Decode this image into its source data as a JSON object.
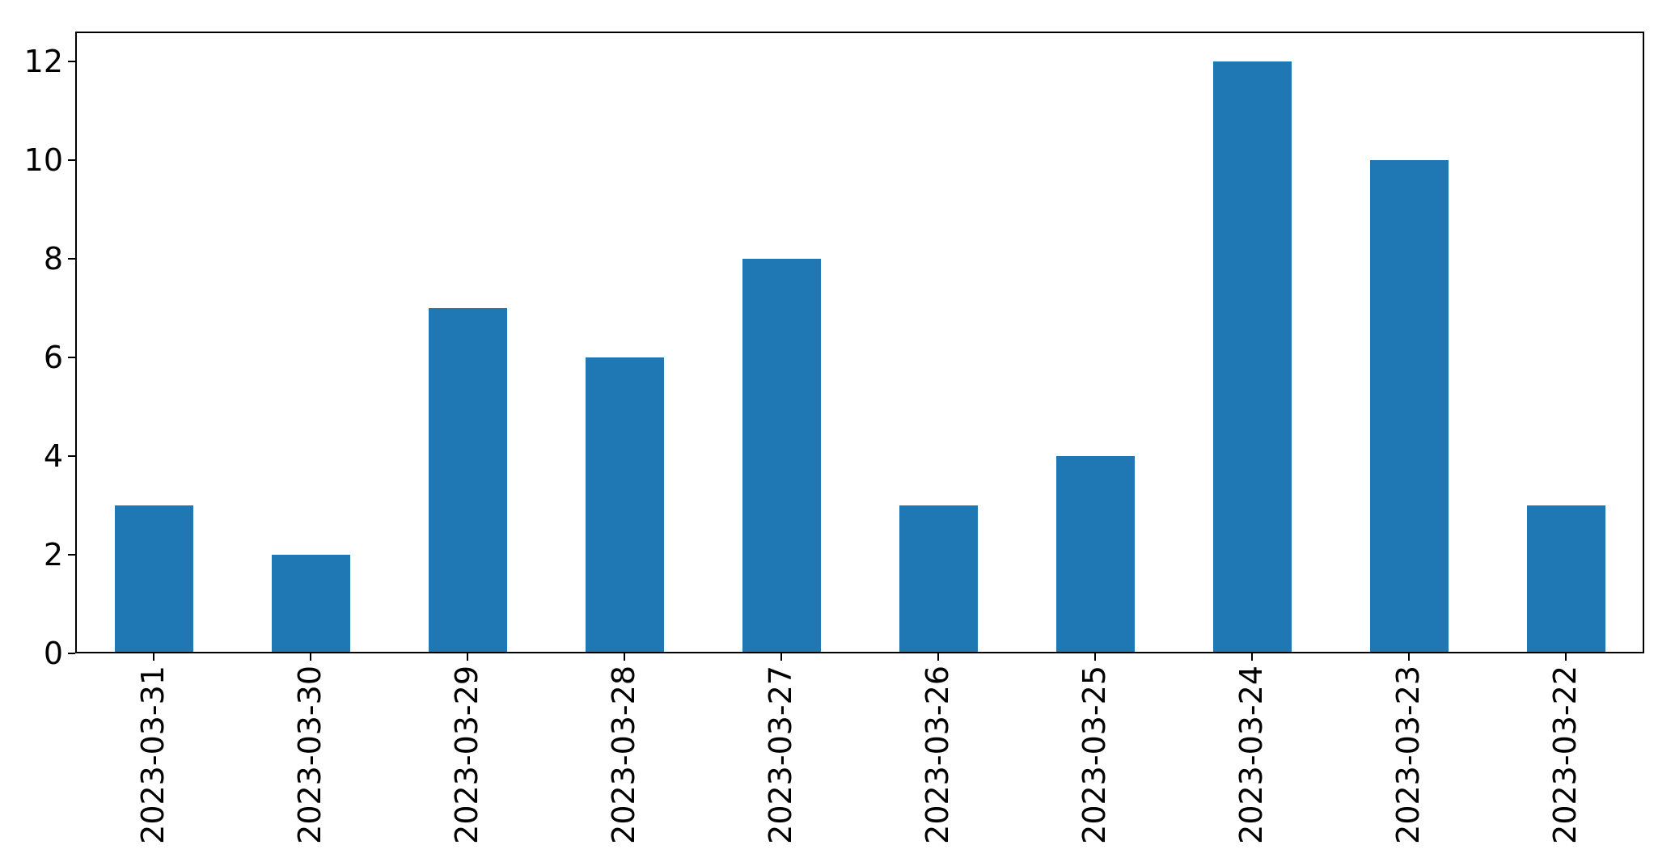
{
  "chart_data": {
    "type": "bar",
    "categories": [
      "2023-03-31",
      "2023-03-30",
      "2023-03-29",
      "2023-03-28",
      "2023-03-27",
      "2023-03-26",
      "2023-03-25",
      "2023-03-24",
      "2023-03-23",
      "2023-03-22"
    ],
    "values": [
      3,
      2,
      7,
      6,
      8,
      3,
      4,
      12,
      10,
      3
    ],
    "title": "",
    "xlabel": "",
    "ylabel": "",
    "ylim": [
      0,
      12.6
    ],
    "yticks": [
      0,
      2,
      4,
      6,
      8,
      10,
      12
    ],
    "x_tick_rotation_deg": 90,
    "bar_width_fraction": 0.5,
    "bar_color": "#1f77b4",
    "axis_color": "#000000",
    "background_color": "#ffffff",
    "grid": false,
    "legend_position": "none"
  }
}
